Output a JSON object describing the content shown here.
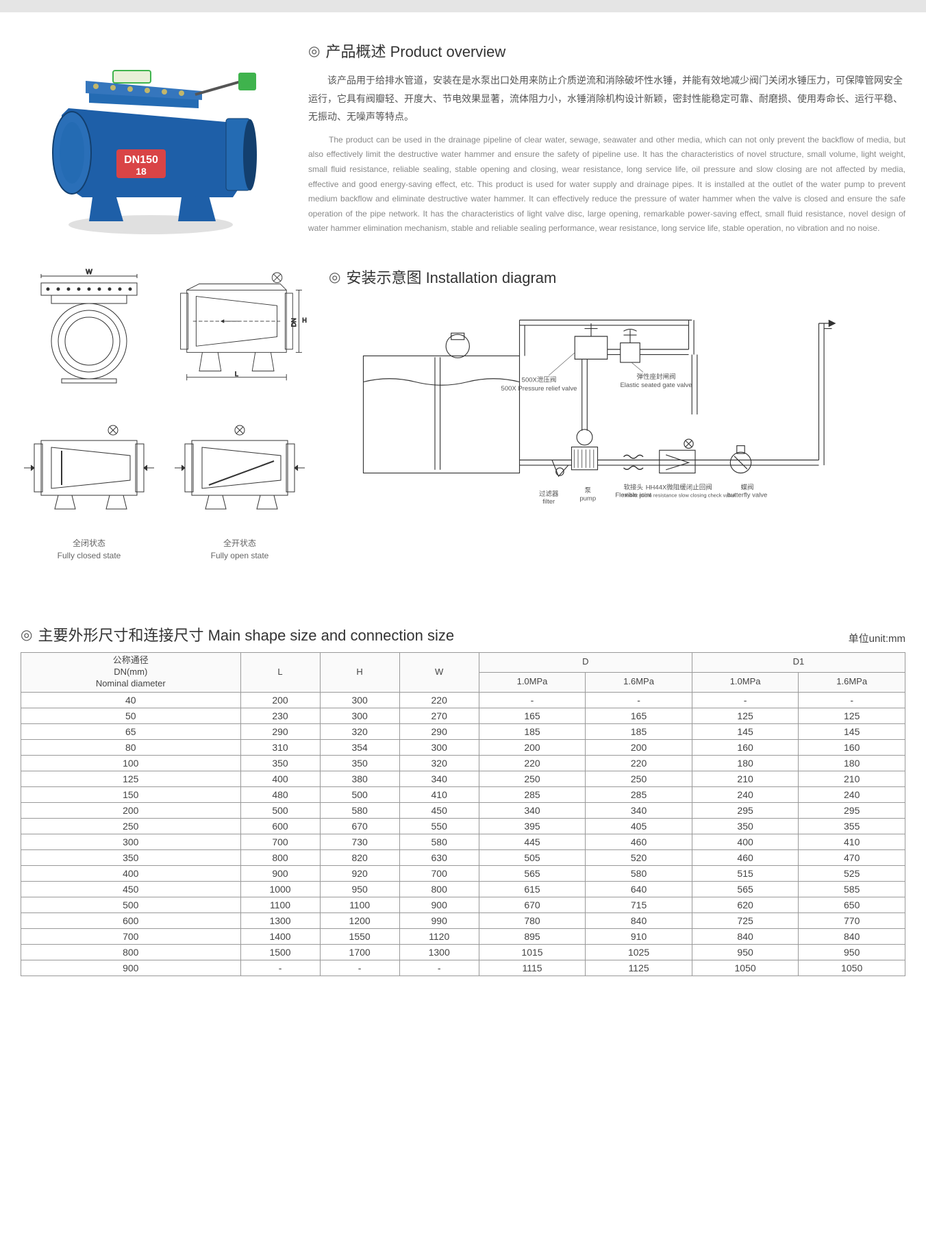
{
  "overview": {
    "title": "产品概述 Product overview",
    "cn": "该产品用于给排水管道，安装在是水泵出口处用来防止介质逆流和消除破坏性水锤，并能有效地减少阀门关闭水锤压力，可保障管网安全运行，它具有阀瓣轻、开度大、节电效果显著，流体阻力小，水锤消除机构设计新颖，密封性能稳定可靠、耐磨损、使用寿命长、运行平稳、无振动、无噪声等特点。",
    "en": "The product can be used in the drainage pipeline of clear water, sewage, seawater and other media, which can not only prevent the backflow of media, but also effectively limit the destructive water hammer and ensure the safety of pipeline use. It has the characteristics of novel structure, small volume, light weight, small fluid resistance, reliable sealing, stable opening and closing, wear resistance, long service life, oil pressure and slow closing are not affected by media, effective and good energy-saving effect, etc. This product is used for water supply and drainage pipes. It is installed at the outlet of the water pump to prevent medium backflow and eliminate destructive water hammer. It can effectively reduce the pressure of water hammer when the valve is closed and ensure the safe operation of the pipe network. It has the characteristics of light valve disc, large opening, remarkable power-saving effect, small fluid resistance, novel design of water hammer elimination mechanism, stable and reliable sealing performance, wear resistance, long service life, stable operation, no vibration and no noise."
  },
  "drawings": {
    "dim_W": "W",
    "dim_L": "L",
    "dim_H": "H",
    "dim_DN": "DN",
    "closed_cn": "全闭状态",
    "closed_en": "Fully closed state",
    "open_cn": "全开状态",
    "open_en": "Fully open state"
  },
  "installation": {
    "title": "安装示意图 Installation diagram",
    "labels": {
      "relief_cn": "500X泄压阀",
      "relief_en": "500X Pressure relief valve",
      "gate_cn": "弹性座封闸阀",
      "gate_en": "Elastic seated gate valve",
      "filter_cn": "过滤器",
      "filter_en": "filter",
      "pump_cn": "泵",
      "pump_en": "pump",
      "flexible_cn": "软接头",
      "flexible_en": "Flexible joint",
      "check_cn": "HH44X微阻缓闭止回阀",
      "check_en": "Hh44x micro resistance slow closing check valve",
      "butterfly_cn": "蝶阀",
      "butterfly_en": "butterfly valve"
    }
  },
  "table": {
    "title": "主要外形尺寸和连接尺寸 Main shape size and connection size",
    "unit": "单位unit:mm",
    "headers": {
      "dn_cn": "公称通径",
      "dn_mm": "DN(mm)",
      "dn_en": "Nominal diameter",
      "L": "L",
      "H": "H",
      "W": "W",
      "D": "D",
      "D1": "D1",
      "p10": "1.0MPa",
      "p16": "1.6MPa"
    },
    "rows": [
      [
        "40",
        "200",
        "300",
        "220",
        "-",
        "-",
        "-",
        "-"
      ],
      [
        "50",
        "230",
        "300",
        "270",
        "165",
        "165",
        "125",
        "125"
      ],
      [
        "65",
        "290",
        "320",
        "290",
        "185",
        "185",
        "145",
        "145"
      ],
      [
        "80",
        "310",
        "354",
        "300",
        "200",
        "200",
        "160",
        "160"
      ],
      [
        "100",
        "350",
        "350",
        "320",
        "220",
        "220",
        "180",
        "180"
      ],
      [
        "125",
        "400",
        "380",
        "340",
        "250",
        "250",
        "210",
        "210"
      ],
      [
        "150",
        "480",
        "500",
        "410",
        "285",
        "285",
        "240",
        "240"
      ],
      [
        "200",
        "500",
        "580",
        "450",
        "340",
        "340",
        "295",
        "295"
      ],
      [
        "250",
        "600",
        "670",
        "550",
        "395",
        "405",
        "350",
        "355"
      ],
      [
        "300",
        "700",
        "730",
        "580",
        "445",
        "460",
        "400",
        "410"
      ],
      [
        "350",
        "800",
        "820",
        "630",
        "505",
        "520",
        "460",
        "470"
      ],
      [
        "400",
        "900",
        "920",
        "700",
        "565",
        "580",
        "515",
        "525"
      ],
      [
        "450",
        "1000",
        "950",
        "800",
        "615",
        "640",
        "565",
        "585"
      ],
      [
        "500",
        "1100",
        "1100",
        "900",
        "670",
        "715",
        "620",
        "650"
      ],
      [
        "600",
        "1300",
        "1200",
        "990",
        "780",
        "840",
        "725",
        "770"
      ],
      [
        "700",
        "1400",
        "1550",
        "1120",
        "895",
        "910",
        "840",
        "840"
      ],
      [
        "800",
        "1500",
        "1700",
        "1300",
        "1015",
        "1025",
        "950",
        "950"
      ],
      [
        "900",
        "-",
        "-",
        "-",
        "1115",
        "1125",
        "1050",
        "1050"
      ]
    ]
  },
  "photo": {
    "body_color": "#1e5fa8",
    "label_text": "DN150",
    "label_sub": "18",
    "label_color": "#d94446",
    "flange_color": "#246bb3",
    "top_color": "#3fb34d",
    "bolt_color": "#c2b66b"
  }
}
